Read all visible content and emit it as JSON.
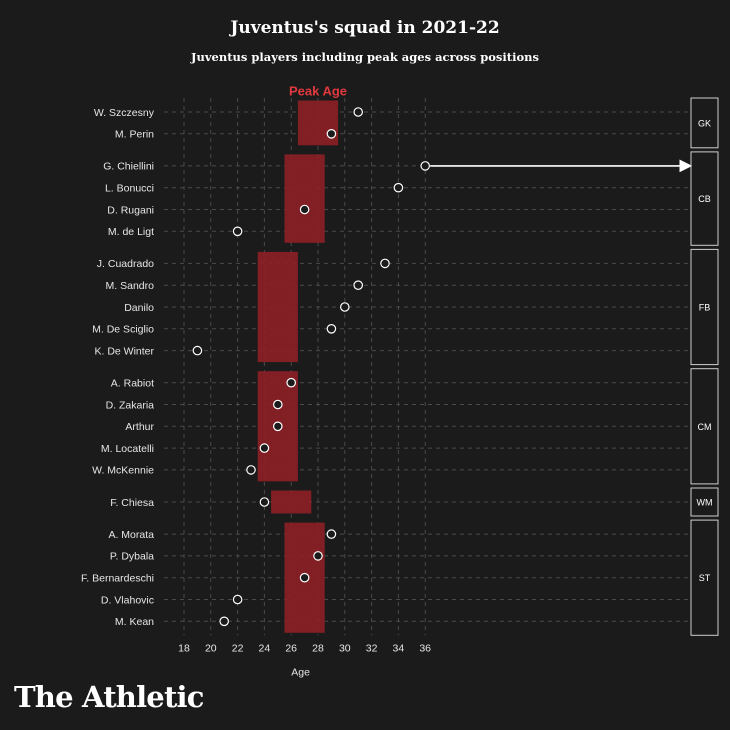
{
  "title": "Juventus's squad in 2021-22",
  "subtitle": "Juventus players including peak ages across positions",
  "brand": "The Athletic",
  "colors": {
    "background": "#1b1b1b",
    "peak_band": "#8b2025",
    "peak_label": "#e0393e",
    "dot_fill": "#1b1b1b",
    "dot_stroke": "#ffffff",
    "grid": "#4a4a4a"
  },
  "chart_data": {
    "type": "scatter",
    "title": "Juventus's squad in 2021-22",
    "subtitle": "Juventus players including peak ages across positions",
    "xlabel": "Age",
    "xlim": [
      16.5,
      37
    ],
    "xticks": [
      18,
      20,
      22,
      24,
      26,
      28,
      30,
      32,
      34,
      36
    ],
    "grid": true,
    "peak_label": "Peak Age",
    "players": [
      {
        "name": "W. Szczesny",
        "age": 31,
        "position": "GK"
      },
      {
        "name": "M. Perin",
        "age": 29,
        "position": "GK"
      },
      {
        "name": "G. Chiellini",
        "age": 37,
        "position": "CB"
      },
      {
        "name": "L. Bonucci",
        "age": 34,
        "position": "CB"
      },
      {
        "name": "D. Rugani",
        "age": 27,
        "position": "CB"
      },
      {
        "name": "M. de Ligt",
        "age": 22,
        "position": "CB"
      },
      {
        "name": "J. Cuadrado",
        "age": 33,
        "position": "FB"
      },
      {
        "name": "M. Sandro",
        "age": 31,
        "position": "FB"
      },
      {
        "name": "Danilo",
        "age": 30,
        "position": "FB"
      },
      {
        "name": "M. De Sciglio",
        "age": 29,
        "position": "FB"
      },
      {
        "name": "K. De Winter",
        "age": 19,
        "position": "FB"
      },
      {
        "name": "A. Rabiot",
        "age": 26,
        "position": "CM"
      },
      {
        "name": "D. Zakaria",
        "age": 25,
        "position": "CM"
      },
      {
        "name": "Arthur",
        "age": 25,
        "position": "CM"
      },
      {
        "name": "M. Locatelli",
        "age": 24,
        "position": "CM"
      },
      {
        "name": "W. McKennie",
        "age": 23,
        "position": "CM"
      },
      {
        "name": "F. Chiesa",
        "age": 24,
        "position": "WM"
      },
      {
        "name": "A. Morata",
        "age": 29,
        "position": "ST"
      },
      {
        "name": "P. Dybala",
        "age": 28,
        "position": "ST"
      },
      {
        "name": "F. Bernardeschi",
        "age": 27,
        "position": "ST"
      },
      {
        "name": "D. Vlahovic",
        "age": 22,
        "position": "ST"
      },
      {
        "name": "M. Kean",
        "age": 21,
        "position": "ST"
      }
    ],
    "positions": [
      {
        "label": "GK",
        "peak_age_range": [
          26.5,
          29.5
        ]
      },
      {
        "label": "CB",
        "peak_age_range": [
          25.5,
          28.5
        ]
      },
      {
        "label": "FB",
        "peak_age_range": [
          23.5,
          26.5
        ]
      },
      {
        "label": "CM",
        "peak_age_range": [
          23.5,
          26.5
        ]
      },
      {
        "label": "WM",
        "peak_age_range": [
          24.5,
          27.5
        ]
      },
      {
        "label": "ST",
        "peak_age_range": [
          25.5,
          28.5
        ]
      }
    ],
    "annotations": [
      {
        "player": "G. Chiellini",
        "note": "age beyond axis limit, shown with arrow"
      }
    ]
  }
}
